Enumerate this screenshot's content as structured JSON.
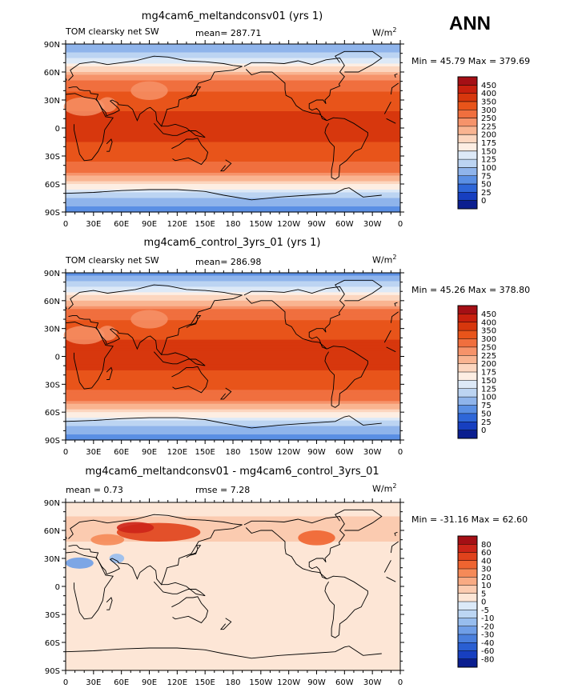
{
  "season": "ANN",
  "panels": [
    {
      "title": "mg4cam6_meltandconsv01 (yrs 1)",
      "field_label": "TOM clearsky net SW",
      "stat_text": "mean= 287.71",
      "stat2_text": "",
      "units_text": "W/m",
      "units_exp": "2",
      "minmax_text": "Min =  45.79 Max = 379.69",
      "kind": "abs"
    },
    {
      "title": "mg4cam6_control_3yrs_01 (yrs 1)",
      "field_label": "TOM clearsky net SW",
      "stat_text": "mean= 286.98",
      "stat2_text": "",
      "units_text": "W/m",
      "units_exp": "2",
      "minmax_text": "Min =  45.26 Max = 378.80",
      "kind": "abs"
    },
    {
      "title": "mg4cam6_meltandconsv01 - mg4cam6_control_3yrs_01",
      "field_label": "mean =    0.73",
      "stat_text": "rmse =    7.28",
      "stat2_text": "",
      "units_text": "W/m",
      "units_exp": "2",
      "minmax_text": "Min = -31.16 Max =  62.60",
      "kind": "diff"
    }
  ],
  "chart_data": {
    "type": "heatmap",
    "xlabel": "",
    "ylabel": "",
    "x_ticks": [
      "0",
      "30E",
      "60E",
      "90E",
      "120E",
      "150E",
      "180",
      "150W",
      "120W",
      "90W",
      "60W",
      "30W",
      "0"
    ],
    "y_ticks": [
      "90N",
      "60N",
      "30N",
      "0",
      "30S",
      "60S",
      "90S"
    ],
    "xlim": [
      0,
      360
    ],
    "ylim": [
      -90,
      90
    ],
    "abs_levels": [
      "450",
      "400",
      "350",
      "300",
      "250",
      "225",
      "200",
      "175",
      "150",
      "125",
      "100",
      "75",
      "50",
      "25",
      "0"
    ],
    "diff_levels": [
      "80",
      "60",
      "40",
      "30",
      "20",
      "10",
      "5",
      "0",
      "-5",
      "-10",
      "-20",
      "-30",
      "-40",
      "-60",
      "-80"
    ],
    "abs_colors": [
      "#a50f15",
      "#c8200e",
      "#d7370d",
      "#e8541a",
      "#f06f3e",
      "#f6936a",
      "#f9b491",
      "#fcd6bf",
      "#fdeee3",
      "#dde9f7",
      "#bcd4f2",
      "#8fb4eb",
      "#5a8fe4",
      "#2e66d8",
      "#173fc0",
      "#0b1e8f"
    ],
    "diff_colors": [
      "#a50f15",
      "#cc2418",
      "#e0421c",
      "#ef6430",
      "#f58a58",
      "#f8aa83",
      "#fbcbb0",
      "#fde6d6",
      "#dbe9f8",
      "#bcd6f3",
      "#97bdee",
      "#6f9ee7",
      "#4a7fdd",
      "#2a5fd2",
      "#173fc0",
      "#0b1e8f"
    ],
    "series": [
      {
        "name": "mg4cam6_meltandconsv01",
        "zonal_mean_lat": [
          -90,
          -75,
          -60,
          -45,
          -30,
          -15,
          0,
          15,
          30,
          45,
          60,
          75,
          90
        ],
        "zonal_mean_values": [
          60,
          95,
          175,
          265,
          320,
          350,
          360,
          355,
          330,
          280,
          205,
          120,
          70
        ]
      },
      {
        "name": "mg4cam6_control_3yrs_01",
        "zonal_mean_lat": [
          -90,
          -75,
          -60,
          -45,
          -30,
          -15,
          0,
          15,
          30,
          45,
          60,
          75,
          90
        ],
        "zonal_mean_values": [
          60,
          95,
          175,
          265,
          320,
          350,
          360,
          355,
          330,
          278,
          200,
          118,
          70
        ]
      },
      {
        "name": "mg4cam6_meltandconsv01 - mg4cam6_control_3yrs_01",
        "zonal_mean_lat": [
          -90,
          -75,
          -60,
          -45,
          -30,
          -15,
          0,
          15,
          30,
          45,
          60,
          75,
          90
        ],
        "zonal_mean_values": [
          0,
          1,
          0,
          0,
          1,
          1,
          1,
          1,
          2,
          4,
          10,
          5,
          0
        ]
      }
    ]
  }
}
